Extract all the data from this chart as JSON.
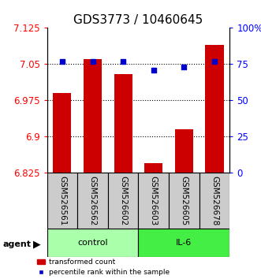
{
  "title": "GDS3773 / 10460645",
  "samples": [
    "GSM526561",
    "GSM526562",
    "GSM526602",
    "GSM526603",
    "GSM526605",
    "GSM526678"
  ],
  "bar_values": [
    6.99,
    7.06,
    7.03,
    6.845,
    6.915,
    7.09
  ],
  "percentile_values": [
    77,
    77,
    77,
    71,
    73,
    77
  ],
  "ylim_left": [
    6.825,
    7.125
  ],
  "ylim_right": [
    0,
    100
  ],
  "yticks_left": [
    6.825,
    6.9,
    6.975,
    7.05,
    7.125
  ],
  "yticks_right": [
    0,
    25,
    50,
    75,
    100
  ],
  "ytick_labels_left": [
    "6.825",
    "6.9",
    "6.975",
    "7.05",
    "7.125"
  ],
  "ytick_labels_right": [
    "0",
    "25",
    "50",
    "75",
    "100%"
  ],
  "hlines": [
    7.05,
    6.975,
    6.9
  ],
  "bar_color": "#cc0000",
  "dot_color": "#0000cc",
  "bar_bottom": 6.825,
  "groups": [
    {
      "label": "control",
      "indices": [
        0,
        1,
        2
      ],
      "color": "#aaffaa"
    },
    {
      "label": "IL-6",
      "indices": [
        3,
        4,
        5
      ],
      "color": "#44ee44"
    }
  ],
  "agent_label": "agent",
  "legend_bar_label": "transformed count",
  "legend_dot_label": "percentile rank within the sample",
  "title_fontsize": 11,
  "tick_label_fontsize": 8.5,
  "bar_width": 0.6
}
